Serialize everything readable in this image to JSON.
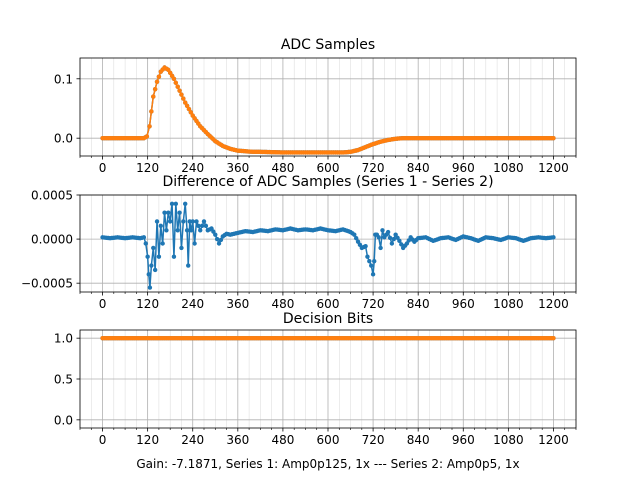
{
  "colors": {
    "series1": "#1f77b4",
    "series2": "#ff7f0e",
    "grid": "#b0b0b0"
  },
  "figure_caption": "Gain: -7.1871, Series 1: Amp0p125, 1x --- Series 2: Amp0p5, 1x",
  "chart_data": [
    {
      "type": "line",
      "title": "ADC Samples",
      "xlabel": "",
      "ylabel": "",
      "xlim": [
        -60,
        1260
      ],
      "ylim": [
        -0.03,
        0.135
      ],
      "xticks": [
        0,
        120,
        240,
        360,
        480,
        600,
        720,
        840,
        960,
        1080,
        1200
      ],
      "xtick_labels": [
        "0",
        "120",
        "240",
        "360",
        "480",
        "600",
        "720",
        "840",
        "960",
        "1080",
        "1200"
      ],
      "yticks": [
        0.0,
        0.1
      ],
      "ytick_labels": [
        "0.0",
        "0.1"
      ],
      "grid": true,
      "minor_x_step": 30,
      "series": [
        {
          "color": "#1f77b4",
          "marker": "o",
          "points": [
            [
              0,
              0
            ],
            [
              100,
              0
            ],
            [
              110,
              0
            ],
            [
              118,
              0.003
            ],
            [
              125,
              0.02
            ],
            [
              130,
              0.045
            ],
            [
              135,
              0.07
            ],
            [
              145,
              0.095
            ],
            [
              155,
              0.112
            ],
            [
              165,
              0.119
            ],
            [
              175,
              0.115
            ],
            [
              190,
              0.1
            ],
            [
              205,
              0.08
            ],
            [
              220,
              0.06
            ],
            [
              240,
              0.038
            ],
            [
              260,
              0.02
            ],
            [
              280,
              0.007
            ],
            [
              300,
              -0.005
            ],
            [
              320,
              -0.013
            ],
            [
              340,
              -0.018
            ],
            [
              360,
              -0.021
            ],
            [
              380,
              -0.022
            ],
            [
              400,
              -0.023
            ],
            [
              420,
              -0.023
            ],
            [
              480,
              -0.024
            ],
            [
              600,
              -0.024
            ],
            [
              640,
              -0.024
            ],
            [
              660,
              -0.023
            ],
            [
              680,
              -0.02
            ],
            [
              700,
              -0.015
            ],
            [
              720,
              -0.01
            ],
            [
              740,
              -0.006
            ],
            [
              760,
              -0.003
            ],
            [
              780,
              -0.001
            ],
            [
              800,
              0
            ],
            [
              840,
              0
            ],
            [
              960,
              0
            ],
            [
              1080,
              0
            ],
            [
              1200,
              0
            ]
          ]
        },
        {
          "color": "#ff7f0e",
          "marker": "o",
          "points": [
            [
              0,
              0
            ],
            [
              100,
              0
            ],
            [
              110,
              0
            ],
            [
              118,
              0.003
            ],
            [
              125,
              0.02
            ],
            [
              130,
              0.045
            ],
            [
              135,
              0.07
            ],
            [
              145,
              0.095
            ],
            [
              155,
              0.112
            ],
            [
              165,
              0.119
            ],
            [
              175,
              0.115
            ],
            [
              190,
              0.1
            ],
            [
              205,
              0.08
            ],
            [
              220,
              0.06
            ],
            [
              240,
              0.038
            ],
            [
              260,
              0.02
            ],
            [
              280,
              0.007
            ],
            [
              300,
              -0.005
            ],
            [
              320,
              -0.013
            ],
            [
              340,
              -0.018
            ],
            [
              360,
              -0.021
            ],
            [
              380,
              -0.022
            ],
            [
              400,
              -0.023
            ],
            [
              420,
              -0.023
            ],
            [
              480,
              -0.024
            ],
            [
              600,
              -0.024
            ],
            [
              640,
              -0.024
            ],
            [
              660,
              -0.023
            ],
            [
              680,
              -0.02
            ],
            [
              700,
              -0.015
            ],
            [
              720,
              -0.01
            ],
            [
              740,
              -0.006
            ],
            [
              760,
              -0.003
            ],
            [
              780,
              -0.001
            ],
            [
              800,
              0
            ],
            [
              840,
              0
            ],
            [
              960,
              0
            ],
            [
              1080,
              0
            ],
            [
              1200,
              0
            ]
          ]
        }
      ]
    },
    {
      "type": "line",
      "title": "Difference of ADC Samples (Series 1 - Series 2)",
      "xlabel": "",
      "ylabel": "",
      "xlim": [
        -60,
        1260
      ],
      "ylim": [
        -0.0006,
        0.0005
      ],
      "xticks": [
        0,
        120,
        240,
        360,
        480,
        600,
        720,
        840,
        960,
        1080,
        1200
      ],
      "xtick_labels": [
        "0",
        "120",
        "240",
        "360",
        "480",
        "600",
        "720",
        "840",
        "960",
        "1080",
        "1200"
      ],
      "yticks": [
        -0.0005,
        0.0,
        0.0005
      ],
      "ytick_labels": [
        "−0.0005",
        "0.0000",
        "0.0005"
      ],
      "grid": true,
      "minor_x_step": 30,
      "series": [
        {
          "color": "#1f77b4",
          "marker": "o",
          "points": [
            [
              0,
              2e-05
            ],
            [
              20,
              1e-05
            ],
            [
              40,
              2e-05
            ],
            [
              60,
              1e-05
            ],
            [
              80,
              2e-05
            ],
            [
              100,
              1e-05
            ],
            [
              110,
              2e-05
            ],
            [
              115,
              -5e-05
            ],
            [
              120,
              -0.0002
            ],
            [
              123,
              -0.0004
            ],
            [
              126,
              -0.00055
            ],
            [
              130,
              -0.0003
            ],
            [
              135,
              -0.0001
            ],
            [
              140,
              -0.00035
            ],
            [
              145,
              0.0002
            ],
            [
              150,
              -0.0002
            ],
            [
              155,
              0.00015
            ],
            [
              160,
              -5e-05
            ],
            [
              165,
              0.0003
            ],
            [
              170,
              0.0001
            ],
            [
              175,
              0.0003
            ],
            [
              180,
              0.0002
            ],
            [
              185,
              0.0004
            ],
            [
              190,
              -0.0002
            ],
            [
              195,
              0.0004
            ],
            [
              200,
              0.0001
            ],
            [
              205,
              0.0003
            ],
            [
              210,
              -0.0001
            ],
            [
              215,
              0.0002
            ],
            [
              220,
              0.0004
            ],
            [
              225,
              0.0001
            ],
            [
              228,
              -0.0003
            ],
            [
              232,
              0.0002
            ],
            [
              236,
              0.0001
            ],
            [
              240,
              0.0002
            ],
            [
              245,
              -5e-05
            ],
            [
              250,
              0.0002
            ],
            [
              255,
              0.00015
            ],
            [
              260,
              0.0001
            ],
            [
              270,
              0.0002
            ],
            [
              280,
              0.0001
            ],
            [
              290,
              0.00012
            ],
            [
              300,
              5e-05
            ],
            [
              310,
              -5e-05
            ],
            [
              320,
              3e-05
            ],
            [
              330,
              6e-05
            ],
            [
              340,
              5e-05
            ],
            [
              360,
              7e-05
            ],
            [
              380,
              9e-05
            ],
            [
              400,
              8e-05
            ],
            [
              420,
              0.0001
            ],
            [
              440,
              9e-05
            ],
            [
              460,
              0.00011
            ],
            [
              480,
              0.0001
            ],
            [
              500,
              0.00012
            ],
            [
              520,
              0.0001
            ],
            [
              540,
              0.00011
            ],
            [
              560,
              0.0001
            ],
            [
              580,
              0.00012
            ],
            [
              600,
              0.0001
            ],
            [
              620,
              9e-05
            ],
            [
              640,
              0.00011
            ],
            [
              660,
              8e-05
            ],
            [
              670,
              5e-05
            ],
            [
              680,
              -3e-05
            ],
            [
              690,
              -0.0001
            ],
            [
              700,
              -8e-05
            ],
            [
              705,
              -0.0002
            ],
            [
              710,
              -0.00025
            ],
            [
              715,
              -0.0003
            ],
            [
              720,
              -0.0004
            ],
            [
              723,
              -0.00025
            ],
            [
              726,
              5e-05
            ],
            [
              730,
              5e-05
            ],
            [
              735,
              2e-05
            ],
            [
              740,
              -0.0001
            ],
            [
              745,
              0.0001
            ],
            [
              750,
              2e-05
            ],
            [
              760,
              8e-05
            ],
            [
              770,
              -5e-05
            ],
            [
              780,
              5e-05
            ],
            [
              790,
              -2e-05
            ],
            [
              800,
              -0.0001
            ],
            [
              810,
              -5e-05
            ],
            [
              820,
              2e-05
            ],
            [
              830,
              -3e-05
            ],
            [
              840,
              1e-05
            ],
            [
              860,
              2e-05
            ],
            [
              880,
              -2e-05
            ],
            [
              900,
              1e-05
            ],
            [
              920,
              2e-05
            ],
            [
              940,
              -1e-05
            ],
            [
              960,
              3e-05
            ],
            [
              980,
              1e-05
            ],
            [
              1000,
              -2e-05
            ],
            [
              1020,
              2e-05
            ],
            [
              1040,
              1e-05
            ],
            [
              1060,
              -1e-05
            ],
            [
              1080,
              2e-05
            ],
            [
              1100,
              1e-05
            ],
            [
              1120,
              -2e-05
            ],
            [
              1140,
              1e-05
            ],
            [
              1160,
              2e-05
            ],
            [
              1180,
              1e-05
            ],
            [
              1200,
              2e-05
            ]
          ]
        }
      ]
    },
    {
      "type": "line",
      "title": "Decision Bits",
      "xlabel": "Gain: -7.1871, Series 1: Amp0p125, 1x --- Series 2: Amp0p5, 1x",
      "ylabel": "",
      "xlim": [
        -60,
        1260
      ],
      "ylim": [
        -0.1,
        1.1
      ],
      "xticks": [
        0,
        120,
        240,
        360,
        480,
        600,
        720,
        840,
        960,
        1080,
        1200
      ],
      "xtick_labels": [
        "0",
        "120",
        "240",
        "360",
        "480",
        "600",
        "720",
        "840",
        "960",
        "1080",
        "1200"
      ],
      "yticks": [
        0.0,
        0.5,
        1.0
      ],
      "ytick_labels": [
        "0.0",
        "0.5",
        "1.0"
      ],
      "grid": true,
      "minor_x_step": 30,
      "series": [
        {
          "color": "#1f77b4",
          "marker": "o",
          "points": [
            [
              0,
              1
            ],
            [
              1200,
              1
            ]
          ]
        },
        {
          "color": "#ff7f0e",
          "marker": "o",
          "points": [
            [
              0,
              1
            ],
            [
              1200,
              1
            ]
          ]
        }
      ]
    }
  ]
}
